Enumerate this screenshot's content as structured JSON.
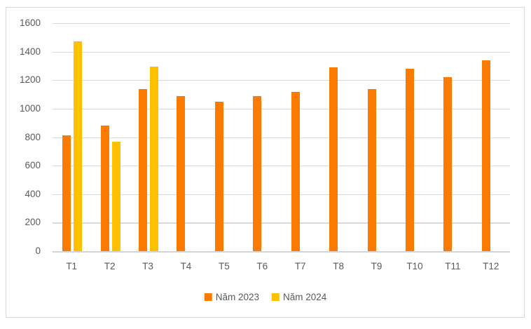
{
  "chart_data": {
    "type": "bar",
    "title": "",
    "categories": [
      "T1",
      "T2",
      "T3",
      "T4",
      "T5",
      "T6",
      "T7",
      "T8",
      "T9",
      "T10",
      "T11",
      "T12"
    ],
    "series": [
      {
        "name": "Năm 2023",
        "color": "#fb7a00",
        "values": [
          810,
          880,
          1135,
          1090,
          1050,
          1090,
          1120,
          1290,
          1135,
          1280,
          1220,
          1340
        ]
      },
      {
        "name": "Năm 2024",
        "color": "#ffc000",
        "values": [
          1470,
          770,
          1295,
          null,
          null,
          null,
          null,
          null,
          null,
          null,
          null,
          null
        ]
      }
    ],
    "xlabel": "",
    "ylabel": "",
    "ylim": [
      0,
      1600
    ],
    "yticks": [
      0,
      200,
      400,
      600,
      800,
      1000,
      1200,
      1400,
      1600
    ],
    "grid": true,
    "legend_position": "bottom",
    "colors": {
      "gridline": "#d9d9d9",
      "axis_text": "#595959",
      "frame_border": "#d9d9d9",
      "background": "#ffffff"
    }
  },
  "legend": {
    "items": [
      {
        "label": "Năm 2023",
        "color": "#fb7a00"
      },
      {
        "label": "Năm 2024",
        "color": "#ffc000"
      }
    ]
  }
}
